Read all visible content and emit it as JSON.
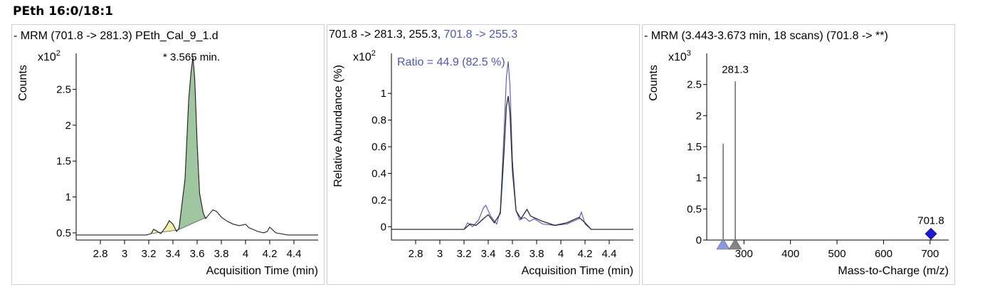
{
  "page_title": "PEth 16:0/18:1",
  "chart_data": [
    {
      "type": "line",
      "header": "- MRM (701.8 -> 281.3) PEth_Cal_9_1.d",
      "ylabel": "Counts",
      "y_multiplier": "x10",
      "y_exponent": "2",
      "xlabel": "Acquisition Time (min)",
      "peak_label": "* 3.565 min.",
      "xlim": [
        2.6,
        4.6
      ],
      "ylim": [
        0.4,
        3.0
      ],
      "x_ticks": [
        "2.8",
        "3",
        "3.2",
        "3.4",
        "3.6",
        "3.8",
        "4",
        "4.2",
        "4.4"
      ],
      "x_tick_values": [
        2.8,
        3.0,
        3.2,
        3.4,
        3.6,
        3.8,
        4.0,
        4.2,
        4.4
      ],
      "y_ticks": [
        "0.5",
        "1",
        "1.5",
        "2",
        "2.5"
      ],
      "y_tick_values": [
        0.5,
        1.0,
        1.5,
        2.0,
        2.5
      ],
      "colors": {
        "trace": "#222222",
        "main_peak_fill": "#9fc79f",
        "side_peak_fill": "#f3f0a8"
      },
      "series": [
        {
          "x": [
            2.6,
            3.18,
            3.22,
            3.24,
            3.27,
            3.3,
            3.34,
            3.37,
            3.4,
            3.43,
            3.45,
            3.5,
            3.53,
            3.55,
            3.565,
            3.58,
            3.6,
            3.62,
            3.65,
            3.67,
            3.7,
            3.73,
            3.76,
            3.8,
            3.85,
            3.9,
            3.95,
            4.0,
            4.03,
            4.06,
            4.1,
            4.15,
            4.18,
            4.2,
            4.25,
            4.35,
            4.6
          ],
          "y": [
            0.47,
            0.47,
            0.49,
            0.55,
            0.52,
            0.49,
            0.58,
            0.67,
            0.62,
            0.52,
            0.56,
            1.25,
            2.35,
            2.75,
            2.95,
            2.65,
            1.75,
            1.05,
            0.78,
            0.7,
            0.76,
            0.82,
            0.8,
            0.72,
            0.66,
            0.62,
            0.6,
            0.62,
            0.57,
            0.55,
            0.52,
            0.5,
            0.52,
            0.58,
            0.5,
            0.47,
            0.47
          ]
        }
      ],
      "shaded_peaks": [
        {
          "name": "side",
          "x_range": [
            3.22,
            3.44
          ]
        },
        {
          "name": "main",
          "x_range": [
            3.44,
            3.68
          ]
        }
      ]
    },
    {
      "type": "line",
      "header_part1": "701.8 -> 281.3, 255.3, ",
      "header_part2": "701.8 -> 255.3",
      "ylabel": "Relative Abundance (%)",
      "y_multiplier": "x10",
      "y_exponent": "2",
      "ratio_label": "Ratio = 44.9 (82.5 %)",
      "xlabel": "Acquisition Time (min)",
      "xlim": [
        2.6,
        4.6
      ],
      "ylim": [
        -0.1,
        1.3
      ],
      "x_ticks": [
        "2.8",
        "3",
        "3.2",
        "3.4",
        "3.6",
        "3.8",
        "4",
        "4.2",
        "4.4"
      ],
      "x_tick_values": [
        2.8,
        3.0,
        3.2,
        3.4,
        3.6,
        3.8,
        4.0,
        4.2,
        4.4
      ],
      "y_ticks": [
        "0",
        "0.2",
        "0.4",
        "0.6",
        "0.8",
        "1"
      ],
      "y_tick_values": [
        0,
        0.2,
        0.4,
        0.6,
        0.8,
        1.0
      ],
      "colors": {
        "qualifier": "#4a55c8",
        "quantifier": "#2a2a2a"
      },
      "series": [
        {
          "name": "701.8 -> 255.3",
          "x": [
            2.6,
            3.2,
            3.23,
            3.27,
            3.32,
            3.36,
            3.38,
            3.42,
            3.47,
            3.5,
            3.53,
            3.55,
            3.565,
            3.58,
            3.6,
            3.63,
            3.66,
            3.7,
            3.74,
            3.78,
            3.85,
            3.95,
            4.05,
            4.15,
            4.17,
            4.2,
            4.25,
            4.6
          ],
          "y": [
            -0.02,
            -0.02,
            0.03,
            0.0,
            0.05,
            0.14,
            0.16,
            0.08,
            0.02,
            0.12,
            0.7,
            1.12,
            1.24,
            1.05,
            0.5,
            0.12,
            0.05,
            0.07,
            0.04,
            0.06,
            0.02,
            0.01,
            0.02,
            0.06,
            0.11,
            0.02,
            -0.02,
            -0.02
          ]
        },
        {
          "name": "701.8 -> 281.3",
          "x": [
            2.6,
            3.2,
            3.25,
            3.3,
            3.36,
            3.4,
            3.45,
            3.5,
            3.53,
            3.55,
            3.565,
            3.58,
            3.6,
            3.63,
            3.67,
            3.72,
            3.75,
            3.8,
            3.85,
            3.95,
            4.05,
            4.15,
            4.2,
            4.25,
            4.6
          ],
          "y": [
            -0.02,
            -0.02,
            0.02,
            0.01,
            0.06,
            0.09,
            0.03,
            0.1,
            0.55,
            0.9,
            0.98,
            0.85,
            0.42,
            0.12,
            0.06,
            0.13,
            0.08,
            0.06,
            0.04,
            0.01,
            0.03,
            0.07,
            0.03,
            -0.02,
            -0.02
          ]
        }
      ]
    },
    {
      "type": "bar",
      "header": "- MRM (3.443-3.673 min, 18 scans) (701.8 -> **)",
      "ylabel": "Counts",
      "y_multiplier": "x10",
      "y_exponent": "3",
      "xlabel": "Mass-to-Charge (m/z)",
      "xlim": [
        220,
        740
      ],
      "ylim": [
        0,
        3.0
      ],
      "x_ticks": [
        "300",
        "400",
        "500",
        "600",
        "700"
      ],
      "x_tick_values": [
        300,
        400,
        500,
        600,
        700
      ],
      "y_ticks": [
        "0",
        "0.5",
        "1",
        "1.5",
        "2",
        "2.5"
      ],
      "y_tick_values": [
        0,
        0.5,
        1.0,
        1.5,
        2.0,
        2.5
      ],
      "colors": {
        "stick": "#444444",
        "precursor": "#1a1ad6",
        "triangle_blue": "#7d8fe0",
        "triangle_gray": "#777777"
      },
      "peaks": [
        {
          "mz": 255.3,
          "value": 1.55
        },
        {
          "mz": 281.3,
          "value": 2.55,
          "label": "281.3"
        }
      ],
      "precursor": {
        "mz": 701.8,
        "value": 0.1,
        "label": "701.8"
      }
    }
  ]
}
